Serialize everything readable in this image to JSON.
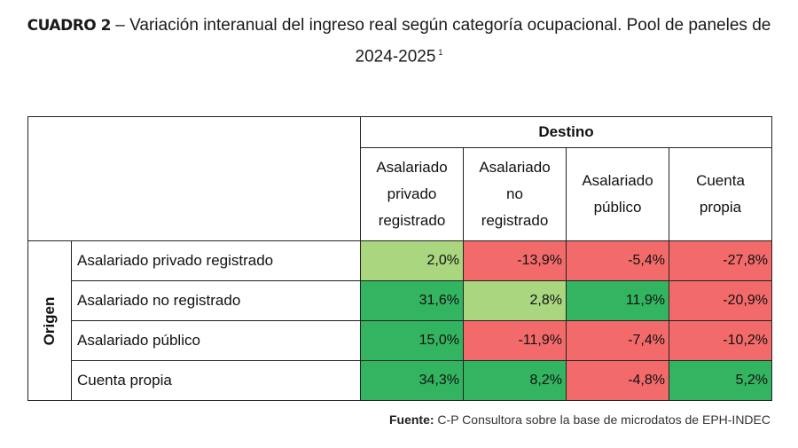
{
  "title": {
    "lead": "CUADRO 2",
    "text": " – Variación interanual del ingreso real según categoría ocupacional. Pool de paneles de 2024-2025",
    "footnote_mark": "1"
  },
  "table": {
    "destino_label": "Destino",
    "origen_label": "Origen",
    "columns": [
      {
        "l1": "Asalariado",
        "l2": "privado",
        "l3": "registrado"
      },
      {
        "l1": "Asalariado",
        "l2": "no",
        "l3": "registrado"
      },
      {
        "l1": "Asalariado",
        "l2": "público",
        "l3": ""
      },
      {
        "l1": "Cuenta",
        "l2": "propia",
        "l3": ""
      }
    ],
    "rows": [
      {
        "label": "Asalariado privado registrado",
        "values": [
          "2,0%",
          "-13,9%",
          "-5,4%",
          "-27,8%"
        ]
      },
      {
        "label": "Asalariado no registrado",
        "values": [
          "31,6%",
          "2,8%",
          "11,9%",
          "-20,9%"
        ]
      },
      {
        "label": "Asalariado público",
        "values": [
          "15,0%",
          "-11,9%",
          "-7,4%",
          "-10,2%"
        ]
      },
      {
        "label": "Cuenta propia",
        "values": [
          "34,3%",
          "8,2%",
          "-4,8%",
          "5,2%"
        ]
      }
    ],
    "colors": {
      "positive": "#33b460",
      "diagonal_small": "#a9d67f",
      "negative": "#f26a6a"
    }
  },
  "source": {
    "label": "Fuente:",
    "text": " C-P Consultora sobre la base de microdatos de EPH-INDEC"
  }
}
